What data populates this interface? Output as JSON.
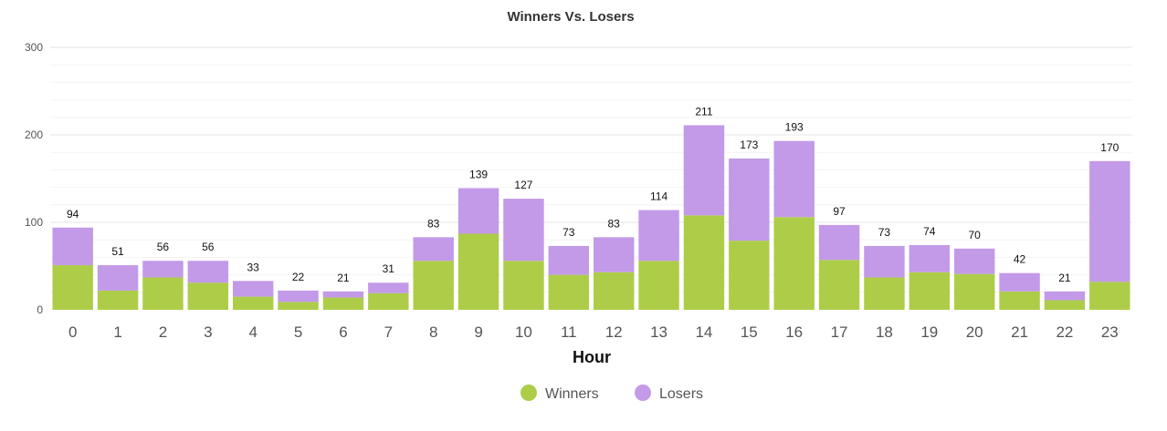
{
  "chart_data": {
    "type": "bar",
    "stacked": true,
    "title": "Winners Vs. Losers",
    "xlabel": "Hour",
    "ylabel": "",
    "ylim": [
      0,
      300
    ],
    "yticks": [
      "0",
      "100",
      "200",
      "300"
    ],
    "grid": true,
    "legend_placement": "bottom-center",
    "categories": [
      "0",
      "1",
      "2",
      "3",
      "4",
      "5",
      "6",
      "7",
      "8",
      "9",
      "10",
      "11",
      "12",
      "13",
      "14",
      "15",
      "16",
      "17",
      "18",
      "19",
      "20",
      "21",
      "22",
      "23"
    ],
    "series": [
      {
        "name": "Winners",
        "color": "#adcd48",
        "values": [
          51,
          22,
          37,
          31,
          15,
          9,
          14,
          19,
          56,
          87,
          56,
          40,
          43,
          56,
          108,
          79,
          106,
          57,
          37,
          43,
          41,
          21,
          11,
          32
        ]
      },
      {
        "name": "Losers",
        "color": "#c29ae8",
        "values": [
          43,
          29,
          19,
          25,
          18,
          13,
          7,
          12,
          27,
          52,
          71,
          33,
          40,
          58,
          103,
          94,
          87,
          40,
          36,
          31,
          29,
          21,
          10,
          138
        ]
      }
    ],
    "totals": [
      94,
      51,
      56,
      56,
      33,
      22,
      21,
      31,
      83,
      139,
      127,
      73,
      83,
      114,
      211,
      173,
      193,
      97,
      73,
      74,
      70,
      42,
      21,
      170
    ]
  }
}
